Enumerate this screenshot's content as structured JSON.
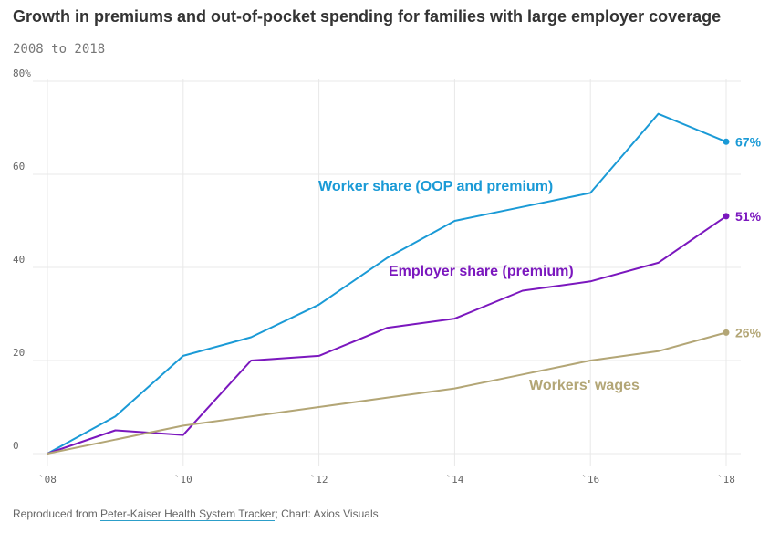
{
  "header": {
    "title": "Growth in premiums and out-of-pocket spending for families with large employer coverage",
    "subtitle": "2008 to 2018"
  },
  "footer": {
    "prefix": "Reproduced from ",
    "source_link": "Peter-Kaiser Health System Tracker",
    "suffix": "; Chart: Axios Visuals"
  },
  "colors": {
    "worker": "#1a9ad6",
    "employer": "#7b17be",
    "wages": "#b3a676",
    "grid": "#e8e8e8",
    "link_underline": "#2c9ec9"
  },
  "chart_data": {
    "type": "line",
    "x": [
      2008,
      2009,
      2010,
      2011,
      2012,
      2013,
      2014,
      2015,
      2016,
      2017,
      2018
    ],
    "x_ticks": [
      2008,
      2010,
      2012,
      2014,
      2016,
      2018
    ],
    "x_tick_labels": [
      "`08",
      "`10",
      "`12",
      "`14",
      "`16",
      "`18"
    ],
    "y_ticks": [
      0,
      20,
      40,
      60,
      80
    ],
    "y_tick_labels": [
      "0",
      "20",
      "40",
      "60",
      "80%"
    ],
    "ylim": [
      0,
      80
    ],
    "xlim": [
      2008,
      2018
    ],
    "grid": true,
    "series": [
      {
        "key": "worker",
        "name": "Worker share (OOP and premium)",
        "values": [
          0,
          8,
          21,
          25,
          32,
          42,
          50,
          53,
          56,
          73,
          67
        ],
        "end_label": "67%"
      },
      {
        "key": "employer",
        "name": "Employer share (premium)",
        "values": [
          0,
          5,
          4,
          20,
          21,
          27,
          29,
          35,
          37,
          41,
          51
        ],
        "end_label": "51%"
      },
      {
        "key": "wages",
        "name": "Workers' wages",
        "values": [
          0,
          3,
          6,
          8,
          10,
          12,
          14,
          17,
          20,
          22,
          26
        ],
        "end_label": "26%"
      }
    ]
  }
}
